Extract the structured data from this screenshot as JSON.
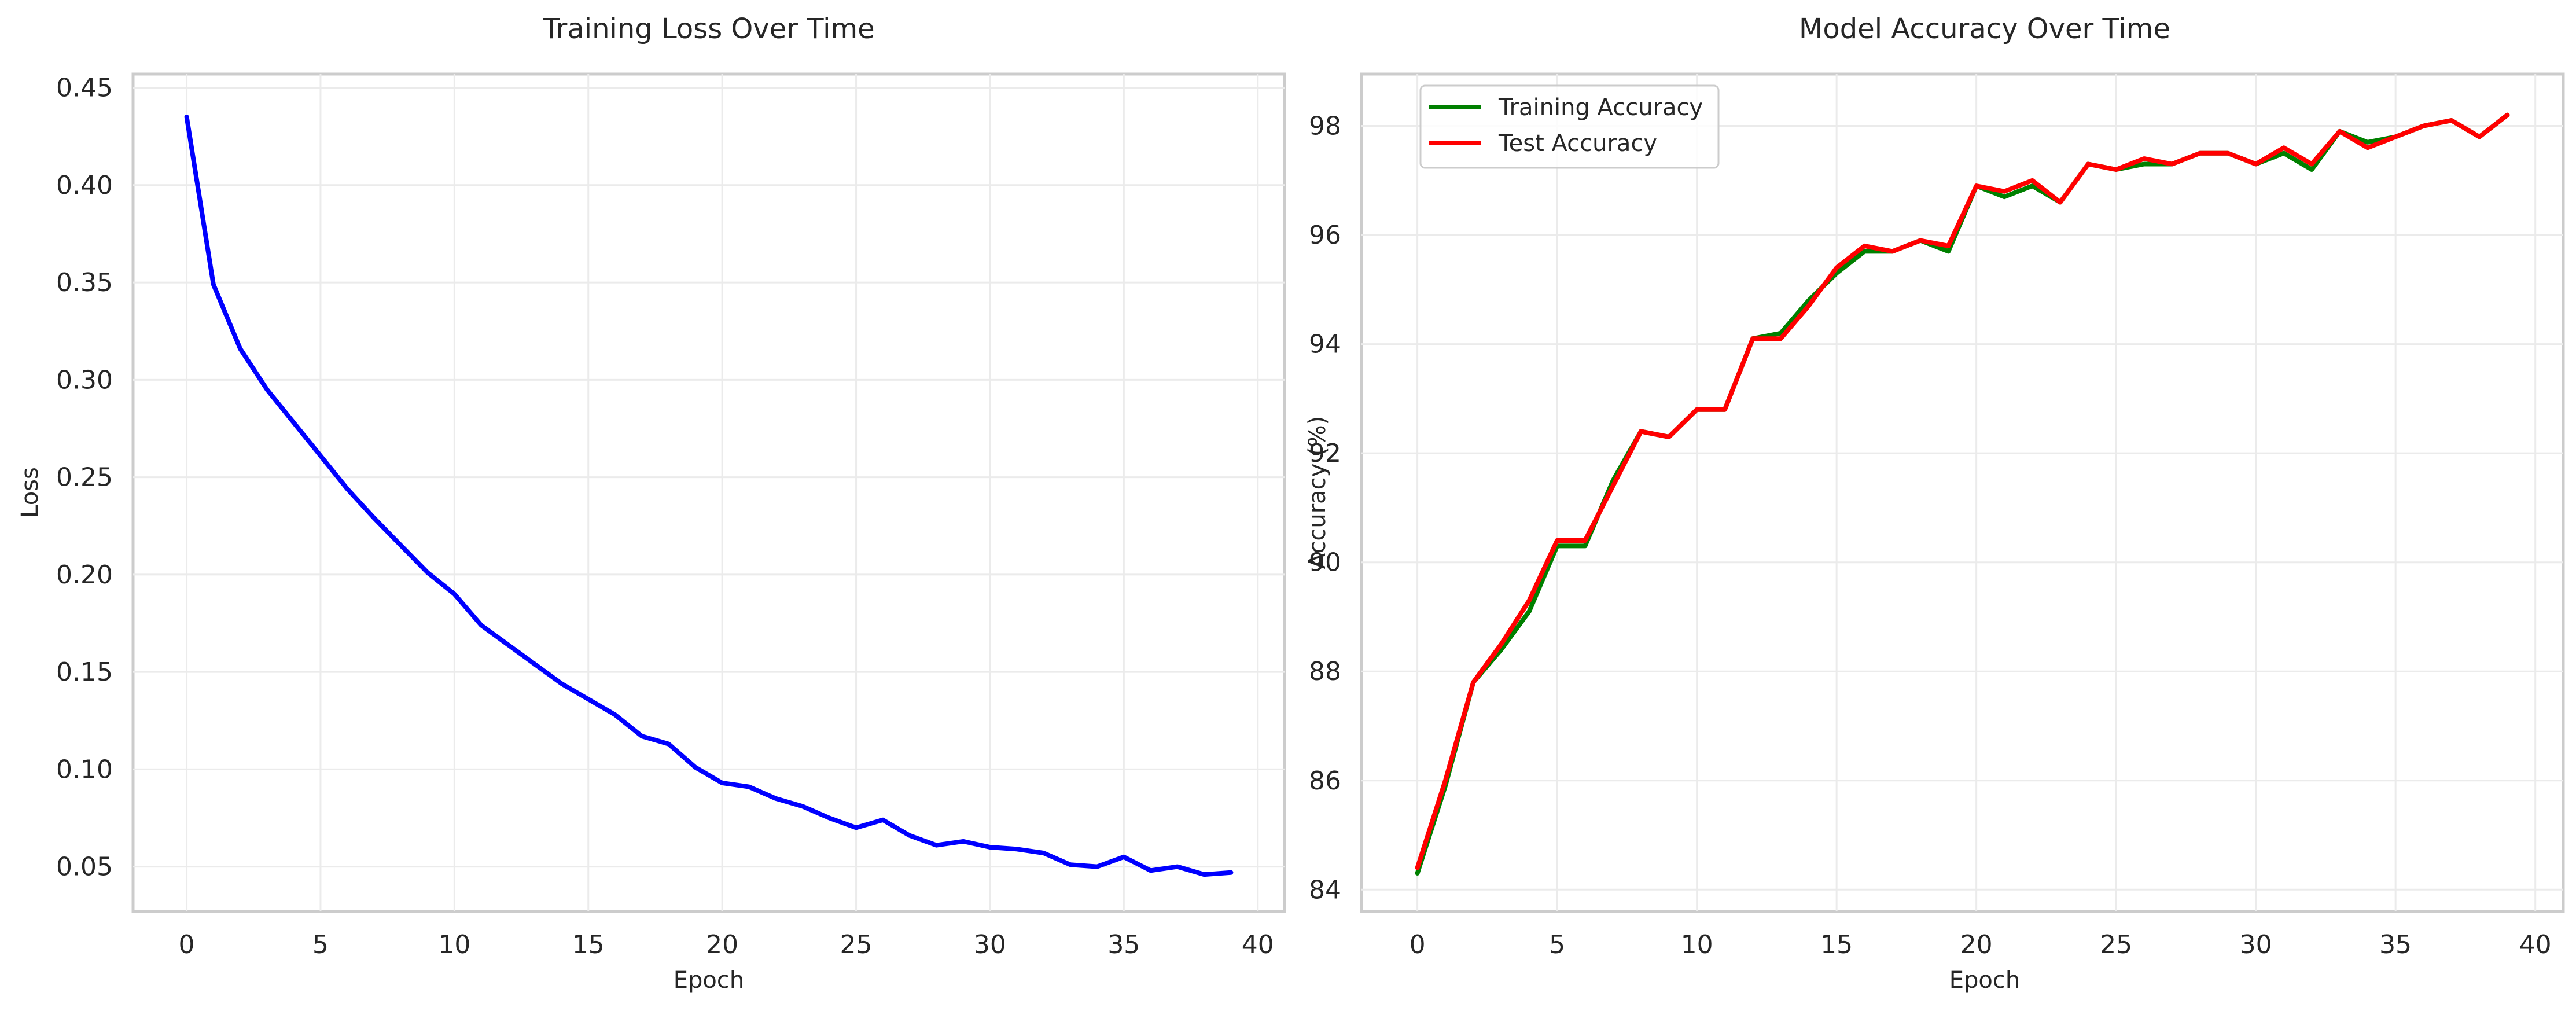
{
  "chart_data": [
    {
      "type": "line",
      "title": "Training Loss Over Time",
      "xlabel": "Epoch",
      "ylabel": "Loss",
      "xlim": [
        -2,
        41
      ],
      "ylim": [
        0.027,
        0.457
      ],
      "xticks": [
        0,
        5,
        10,
        15,
        20,
        25,
        30,
        35,
        40
      ],
      "yticks": [
        0.05,
        0.1,
        0.15,
        0.2,
        0.25,
        0.3,
        0.35,
        0.4,
        0.45
      ],
      "xtick_labels": [
        "0",
        "5",
        "10",
        "15",
        "20",
        "25",
        "30",
        "35",
        "40"
      ],
      "ytick_labels": [
        "0.05",
        "0.10",
        "0.15",
        "0.20",
        "0.25",
        "0.30",
        "0.35",
        "0.40",
        "0.45"
      ],
      "grid": true,
      "x": [
        0,
        1,
        2,
        3,
        4,
        5,
        6,
        7,
        8,
        9,
        10,
        11,
        12,
        13,
        14,
        15,
        16,
        17,
        18,
        19,
        20,
        21,
        22,
        23,
        24,
        25,
        26,
        27,
        28,
        29,
        30,
        31,
        32,
        33,
        34,
        35,
        36,
        37,
        38,
        39
      ],
      "series": [
        {
          "color": "#0000ff",
          "values": [
            0.435,
            0.349,
            0.316,
            0.295,
            0.278,
            0.261,
            0.244,
            0.229,
            0.215,
            0.201,
            0.19,
            0.174,
            0.164,
            0.154,
            0.144,
            0.136,
            0.128,
            0.117,
            0.113,
            0.101,
            0.093,
            0.091,
            0.085,
            0.081,
            0.075,
            0.07,
            0.074,
            0.066,
            0.061,
            0.063,
            0.06,
            0.059,
            0.057,
            0.051,
            0.05,
            0.055,
            0.048,
            0.05,
            0.046,
            0.047
          ]
        }
      ]
    },
    {
      "type": "line",
      "title": "Model Accuracy Over Time",
      "xlabel": "Epoch",
      "ylabel": "Accuracy (%)",
      "xlim": [
        -2,
        41
      ],
      "ylim": [
        83.6,
        98.95
      ],
      "xticks": [
        0,
        5,
        10,
        15,
        20,
        25,
        30,
        35,
        40
      ],
      "yticks": [
        84,
        86,
        88,
        90,
        92,
        94,
        96,
        98
      ],
      "xtick_labels": [
        "0",
        "5",
        "10",
        "15",
        "20",
        "25",
        "30",
        "35",
        "40"
      ],
      "ytick_labels": [
        "84",
        "86",
        "88",
        "90",
        "92",
        "94",
        "96",
        "98"
      ],
      "grid": true,
      "legend": "top-left",
      "x": [
        0,
        1,
        2,
        3,
        4,
        5,
        6,
        7,
        8,
        9,
        10,
        11,
        12,
        13,
        14,
        15,
        16,
        17,
        18,
        19,
        20,
        21,
        22,
        23,
        24,
        25,
        26,
        27,
        28,
        29,
        30,
        31,
        32,
        33,
        34,
        35,
        36,
        37,
        38,
        39
      ],
      "series": [
        {
          "name": "Training Accuracy",
          "color": "#008000",
          "values": [
            84.3,
            85.9,
            87.8,
            88.4,
            89.1,
            90.3,
            90.3,
            91.5,
            92.4,
            92.3,
            92.8,
            92.8,
            94.1,
            94.2,
            94.8,
            95.3,
            95.7,
            95.7,
            95.9,
            95.7,
            96.9,
            96.7,
            96.9,
            96.6,
            97.3,
            97.2,
            97.3,
            97.3,
            97.5,
            97.5,
            97.3,
            97.5,
            97.2,
            97.9,
            97.7,
            97.8,
            98.0,
            98.1,
            97.8,
            98.2
          ]
        },
        {
          "name": "Test Accuracy",
          "color": "#ff0000",
          "values": [
            84.4,
            86.0,
            87.8,
            88.5,
            89.3,
            90.4,
            90.4,
            91.4,
            92.4,
            92.3,
            92.8,
            92.8,
            94.1,
            94.1,
            94.7,
            95.4,
            95.8,
            95.7,
            95.9,
            95.8,
            96.9,
            96.8,
            97.0,
            96.6,
            97.3,
            97.2,
            97.4,
            97.3,
            97.5,
            97.5,
            97.3,
            97.6,
            97.3,
            97.9,
            97.6,
            97.8,
            98.0,
            98.1,
            97.8,
            98.2
          ]
        }
      ]
    }
  ]
}
